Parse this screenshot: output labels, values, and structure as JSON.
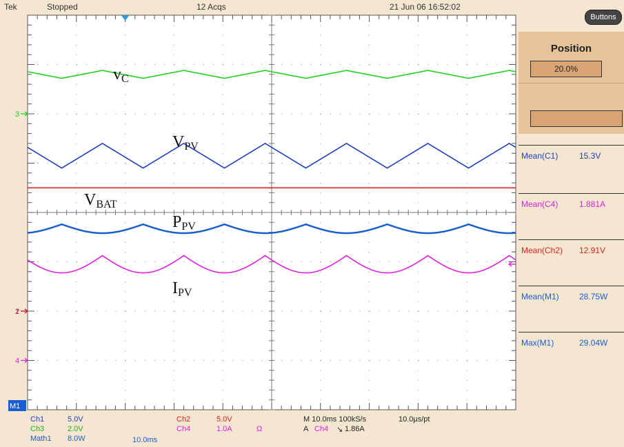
{
  "header": {
    "brand": "Tek",
    "state": "Stopped",
    "acqs": "12 Acqs",
    "datetime": "21 Jun 06 16:52:02"
  },
  "side": {
    "buttons_label": "Buttons",
    "position_title": "Position",
    "position_value": "20.0%",
    "measurements": [
      {
        "label": "Mean(C1)",
        "value": "15.3V",
        "color": "#1f3fbf"
      },
      {
        "label": "Mean(C4)",
        "value": "1.881A",
        "color": "#e020e0"
      },
      {
        "label": "Mean(Ch2)",
        "value": "12.91V",
        "color": "#e02020"
      },
      {
        "label": "Mean(M1)",
        "value": "28.75W",
        "color": "#1a5fd0"
      },
      {
        "label": "Max(M1)",
        "value": "29.04W",
        "color": "#1a5fd0"
      }
    ]
  },
  "footer": {
    "ch1_name": "Ch1",
    "ch1_scale": "5.0V",
    "ch3_name": "Ch3",
    "ch3_scale": "2.0V",
    "math_name": "Math1",
    "math_scale": "8.0W",
    "math_time": "10.0ms",
    "ch2_name": "Ch2",
    "ch2_scale": "5.0V",
    "ch4_name": "Ch4",
    "ch4_scale": "1.0A",
    "ohm": "Ω",
    "timebase": "M 10.0ms 100kS/s",
    "per_pt": "10.0µs/pt",
    "trigger": "A",
    "trigger_ch": "Ch4",
    "trigger_slope": "↘",
    "trigger_level": "1.86A"
  },
  "markers": {
    "ch3": "3",
    "ch1": "1",
    "ch2": "2",
    "ch4": "4",
    "math": "M1"
  },
  "annotations": {
    "vc": {
      "main": "v",
      "sub": "C"
    },
    "vpv": {
      "main": "V",
      "sub": "PV"
    },
    "vbat": {
      "main": "V",
      "sub": "BAT"
    },
    "ppv": {
      "main": "P",
      "sub": "PV"
    },
    "ipv": {
      "main": "I",
      "sub": "PV"
    }
  },
  "colors": {
    "ch1": "#1f3fbf",
    "ch2": "#e02020",
    "ch3": "#20d020",
    "ch4": "#e020e0",
    "math": "#1a5fd0",
    "grid": "#8a8a8a",
    "bg": "#ffffff",
    "panel": "#f5e6d1"
  },
  "chart_data": {
    "type": "line",
    "grid": "on",
    "x_divisions": 10,
    "y_divisions": 8,
    "series": [
      {
        "name": "v_C",
        "channel": "Ch3",
        "shape": "triangle",
        "cycles": 6,
        "level_div": 1.2,
        "pp_div": 0.16
      },
      {
        "name": "V_PV",
        "channel": "Ch1",
        "shape": "triangle",
        "cycles": 6,
        "level_div": 2.85,
        "pp_div": 0.5
      },
      {
        "name": "V_BAT",
        "channel": "Ch2",
        "shape": "flat",
        "level_div": 3.5
      },
      {
        "name": "P_PV",
        "channel": "Math1",
        "shape": "rectified",
        "cycles": 6,
        "level_div": 4.33,
        "pp_div": 0.18
      },
      {
        "name": "I_PV",
        "channel": "Ch4",
        "shape": "cusp",
        "cycles": 6,
        "level_div": 5.05,
        "pp_div": 0.35
      }
    ]
  }
}
